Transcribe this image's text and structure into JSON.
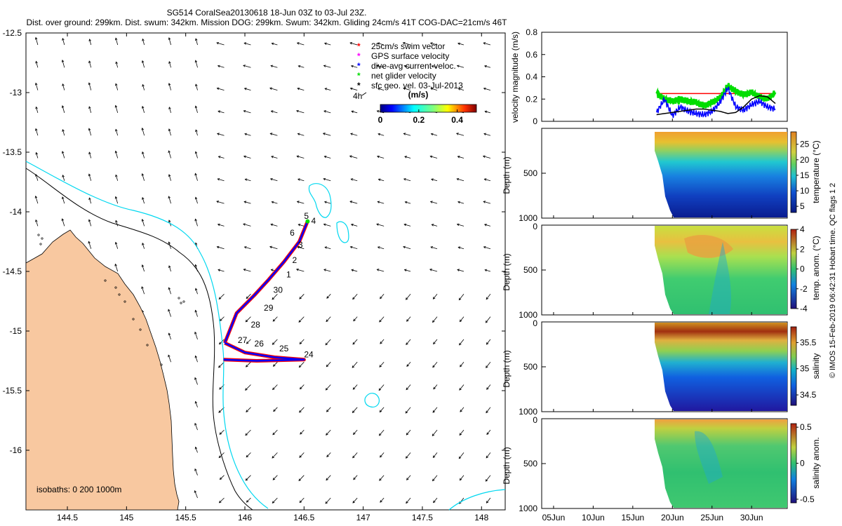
{
  "header": {
    "title_line1": "SG514 CoralSea20130618 18-Jun 03Z to 03-Jul 23Z.",
    "title_line2": "Dist. over ground: 299km. Dist. swum: 342km. Mission DOG: 299km. Swum: 342km. Gliding 24cm/s 41T COG-DAC=21cm/s 46T"
  },
  "colors": {
    "land": "#F8C8A0",
    "isobath_200": "#000000",
    "isobath_1000": "#00D8F0",
    "track_dive_avg": "#0000FF",
    "track_swim": "#FF0000",
    "gps_surface": "#FF00FF",
    "net_glider": "#00DD00",
    "geo_velocity": "#000000"
  },
  "footer": {
    "credit": "© IMOS 15-Feb-2019 06:42:31 Hobart time. QC flags 1  2"
  },
  "chart_data": [
    {
      "type": "map",
      "name": "glider track and currents",
      "xlim": [
        144.15,
        148.2
      ],
      "ylim": [
        -16.5,
        -12.5
      ],
      "x_ticks": [
        "144.5",
        "145",
        "145.5",
        "146",
        "146.5",
        "147",
        "147.5",
        "148"
      ],
      "x_tick_values": [
        144.5,
        145,
        145.5,
        146,
        146.5,
        147,
        147.5,
        148
      ],
      "y_ticks": [
        "-12.5",
        "-13",
        "-13.5",
        "-14",
        "-14.5",
        "-15",
        "-15.5",
        "-16"
      ],
      "y_tick_values": [
        -12.5,
        -13,
        -13.5,
        -14,
        -14.5,
        -15,
        -15.5,
        -16
      ],
      "legend": [
        {
          "symbol": "*",
          "label": "25cm/s swim vector",
          "color": "#FF0000"
        },
        {
          "symbol": "*",
          "label": "GPS surface velocity",
          "color": "#FF00FF"
        },
        {
          "symbol": "*",
          "label": "dive-avg current veloc.",
          "color": "#0000FF"
        },
        {
          "symbol": "*",
          "label": "net glider velocity",
          "color": "#00DD00"
        },
        {
          "symbol": "*",
          "label": "sfc geo. vel. 03-Jul-2013",
          "color": "#000000"
        }
      ],
      "arrow_scale_label": "4h",
      "colorbar": {
        "title": "(m/s)",
        "ticks": [
          "0",
          "0.2",
          "0.4"
        ],
        "tick_values": [
          0,
          0.2,
          0.4
        ],
        "range": [
          0,
          0.5
        ]
      },
      "isobath_text": "isobaths: 0   200  1000m",
      "track_outbound": [
        [
          145.83,
          -15.1
        ],
        [
          145.93,
          -14.85
        ],
        [
          146.08,
          -14.7
        ],
        [
          146.2,
          -14.57
        ],
        [
          146.33,
          -14.42
        ],
        [
          146.46,
          -14.25
        ],
        [
          146.53,
          -14.08
        ]
      ],
      "track_return": [
        [
          145.83,
          -15.1
        ],
        [
          146.0,
          -15.18
        ],
        [
          146.25,
          -15.22
        ],
        [
          146.5,
          -15.24
        ],
        [
          146.1,
          -15.25
        ],
        [
          145.82,
          -15.24
        ]
      ],
      "day_labels": [
        {
          "text": "5",
          "lon": 146.52,
          "lat": -14.06
        },
        {
          "text": "4",
          "lon": 146.58,
          "lat": -14.1
        },
        {
          "text": "6",
          "lon": 146.4,
          "lat": -14.2
        },
        {
          "text": "3",
          "lon": 146.47,
          "lat": -14.3
        },
        {
          "text": "2",
          "lon": 146.42,
          "lat": -14.43
        },
        {
          "text": "1",
          "lon": 146.37,
          "lat": -14.55
        },
        {
          "text": "30",
          "lon": 146.28,
          "lat": -14.68
        },
        {
          "text": "29",
          "lon": 146.2,
          "lat": -14.83
        },
        {
          "text": "28",
          "lon": 146.09,
          "lat": -14.97
        },
        {
          "text": "27",
          "lon": 145.98,
          "lat": -15.1
        },
        {
          "text": "26",
          "lon": 146.12,
          "lat": -15.13
        },
        {
          "text": "25",
          "lon": 146.33,
          "lat": -15.17
        },
        {
          "text": "24",
          "lon": 146.54,
          "lat": -15.22
        }
      ]
    },
    {
      "type": "line",
      "name": "velocity magnitude",
      "ylabel": "velocity magnitude (m/s)",
      "ylim": [
        0,
        0.8
      ],
      "y_ticks": [
        "0",
        "0.2",
        "0.4",
        "0.6",
        "0.8"
      ],
      "y_tick_values": [
        0,
        0.2,
        0.4,
        0.6,
        0.8
      ],
      "x": [
        18.0,
        19.0,
        20.0,
        21.0,
        22.0,
        23.0,
        24.0,
        25.0,
        26.0,
        27.0,
        28.0,
        29.0,
        30.0,
        31.0,
        32.0,
        33.0
      ],
      "series": [
        {
          "name": "swim vector",
          "color": "#FF0000",
          "values": [
            0.25,
            0.25,
            0.25,
            0.25,
            0.25,
            0.25,
            0.25,
            0.25,
            0.25,
            0.25,
            0.25,
            0.25,
            0.25,
            0.25,
            0.25,
            0.25
          ]
        },
        {
          "name": "net glider velocity",
          "color": "#00DD00",
          "values": [
            0.25,
            0.2,
            0.18,
            0.2,
            0.18,
            0.17,
            0.14,
            0.17,
            0.21,
            0.32,
            0.27,
            0.24,
            0.26,
            0.22,
            0.2,
            0.26
          ]
        },
        {
          "name": "dive-avg current",
          "color": "#0000FF",
          "values": [
            0.08,
            0.2,
            0.05,
            0.13,
            0.09,
            0.07,
            0.06,
            0.09,
            0.17,
            0.3,
            0.13,
            0.1,
            0.15,
            0.18,
            0.13,
            0.11
          ]
        },
        {
          "name": "sfc geo. vel.",
          "color": "#000000",
          "values": [
            0.06,
            0.07,
            0.08,
            0.09,
            0.1,
            0.11,
            0.11,
            0.1,
            0.09,
            0.07,
            0.08,
            0.13,
            0.2,
            0.23,
            0.22,
            0.16
          ]
        }
      ]
    },
    {
      "type": "heatmap",
      "name": "temperature",
      "ylabel": "Depth (m)",
      "cbar_label": "temperature (°C)",
      "y_ticks": [
        "500",
        "1000"
      ],
      "y_tick_values": [
        500,
        1000
      ],
      "cbar_ticks": [
        "5",
        "10",
        "15",
        "20",
        "25"
      ],
      "cbar_tick_values": [
        5,
        10,
        15,
        20,
        25
      ],
      "cbar_range": [
        3,
        29
      ]
    },
    {
      "type": "heatmap",
      "name": "temperature anomaly",
      "ylabel": "Depth (m)",
      "y_ticks": [
        "0",
        "500",
        "1000"
      ],
      "y_tick_values": [
        0,
        500,
        1000
      ],
      "cbar_label": "temp. anom. (°C)",
      "cbar_ticks": [
        "4",
        "2",
        "0",
        "-2",
        "-4"
      ],
      "cbar_tick_values": [
        4,
        2,
        0,
        -2,
        -4
      ],
      "cbar_range": [
        -4,
        4
      ]
    },
    {
      "type": "heatmap",
      "name": "salinity",
      "ylabel": "Depth (m)",
      "y_ticks": [
        "0",
        "500",
        "1000"
      ],
      "y_tick_values": [
        0,
        500,
        1000
      ],
      "cbar_label": "salinity",
      "cbar_ticks": [
        "35.5",
        "35",
        "34.5"
      ],
      "cbar_tick_values": [
        35.5,
        35,
        34.5
      ],
      "cbar_range": [
        34.3,
        35.8
      ]
    },
    {
      "type": "heatmap",
      "name": "salinity anomaly",
      "ylabel": "Depth (m)",
      "y_ticks": [
        "0",
        "500",
        "1000"
      ],
      "y_tick_values": [
        0,
        500,
        1000
      ],
      "cbar_label": "salinity anom.",
      "cbar_ticks": [
        "0.5",
        "0",
        "-0.5"
      ],
      "cbar_tick_values": [
        0.5,
        0,
        -0.5
      ],
      "cbar_range": [
        -0.55,
        0.55
      ],
      "x_ticks": [
        "05Jun",
        "10Jun",
        "15Jun",
        "20Jun",
        "25Jun",
        "30Jun"
      ],
      "x_tick_values": [
        5,
        10,
        15,
        20,
        25,
        30
      ],
      "xlim": [
        3.5,
        34.5
      ]
    }
  ]
}
